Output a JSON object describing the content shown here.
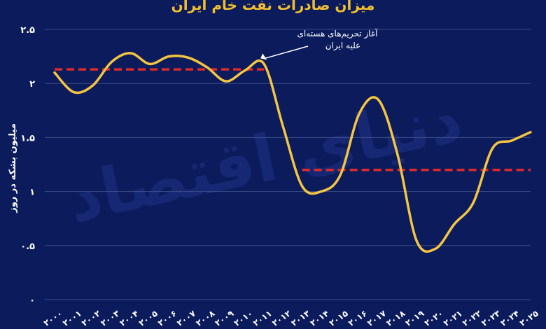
{
  "chart_data": {
    "type": "line",
    "title": "میزان صادرات نفت خام ایران",
    "ylabel": "میلیون بشکه در روز",
    "xlabel": "",
    "ylim": [
      0,
      2.5
    ],
    "yticks": [
      0,
      0.5,
      1,
      1.5,
      2,
      2.5
    ],
    "ytick_labels": [
      "۰",
      "۰.۵",
      "۱",
      "۱.۵",
      "۲",
      "۲.۵"
    ],
    "grid": true,
    "categories": [
      "2000",
      "2001",
      "2002",
      "2003",
      "2004",
      "2005",
      "2006",
      "2007",
      "2008",
      "2009",
      "2010",
      "2011",
      "2012",
      "2013",
      "2014",
      "2015",
      "2016",
      "2017",
      "2018",
      "2019",
      "2020",
      "2021",
      "2022",
      "2023",
      "2024",
      "2025"
    ],
    "xtick_labels": [
      "۲۰۰۰",
      "۲۰۰۱",
      "۲۰۰۲",
      "۲۰۰۳",
      "۲۰۰۴",
      "۲۰۰۵",
      "۲۰۰۶",
      "۲۰۰۷",
      "۲۰۰۸",
      "۲۰۰۹",
      "۲۰۱۰",
      "۲۰۱۱",
      "۲۰۱۲",
      "۲۰۱۳",
      "۲۰۱۴",
      "۲۰۱۵",
      "۲۰۱۶",
      "۲۰۱۷",
      "۲۰۱۸",
      "۲۰۱۹",
      "۲۰۲۰",
      "۲۰۲۱",
      "۲۰۲۲",
      "۲۰۲۳",
      "۲۰۲۴",
      "۲۰۲۵"
    ],
    "series": [
      {
        "color": "#f5c542",
        "values": [
          2.1,
          1.92,
          1.98,
          2.2,
          2.28,
          2.18,
          2.25,
          2.24,
          2.15,
          2.02,
          2.12,
          2.18,
          1.6,
          1.05,
          1.0,
          1.15,
          1.72,
          1.85,
          1.35,
          0.55,
          0.47,
          0.7,
          0.9,
          1.4,
          1.47,
          1.55
        ]
      }
    ],
    "reference_lines": [
      {
        "color": "#e02a2a",
        "from": "2000",
        "to": "2011",
        "value": 2.13
      },
      {
        "color": "#e02a2a",
        "from": "2013",
        "to": "2025",
        "value": 1.2
      }
    ],
    "annotations": [
      {
        "line1": "آغاز تحریم‌های هسته‌ای",
        "line2": "علیه ایران",
        "x": "2011",
        "y": 2.18
      }
    ]
  },
  "watermark": "دنیای اقتصاد"
}
